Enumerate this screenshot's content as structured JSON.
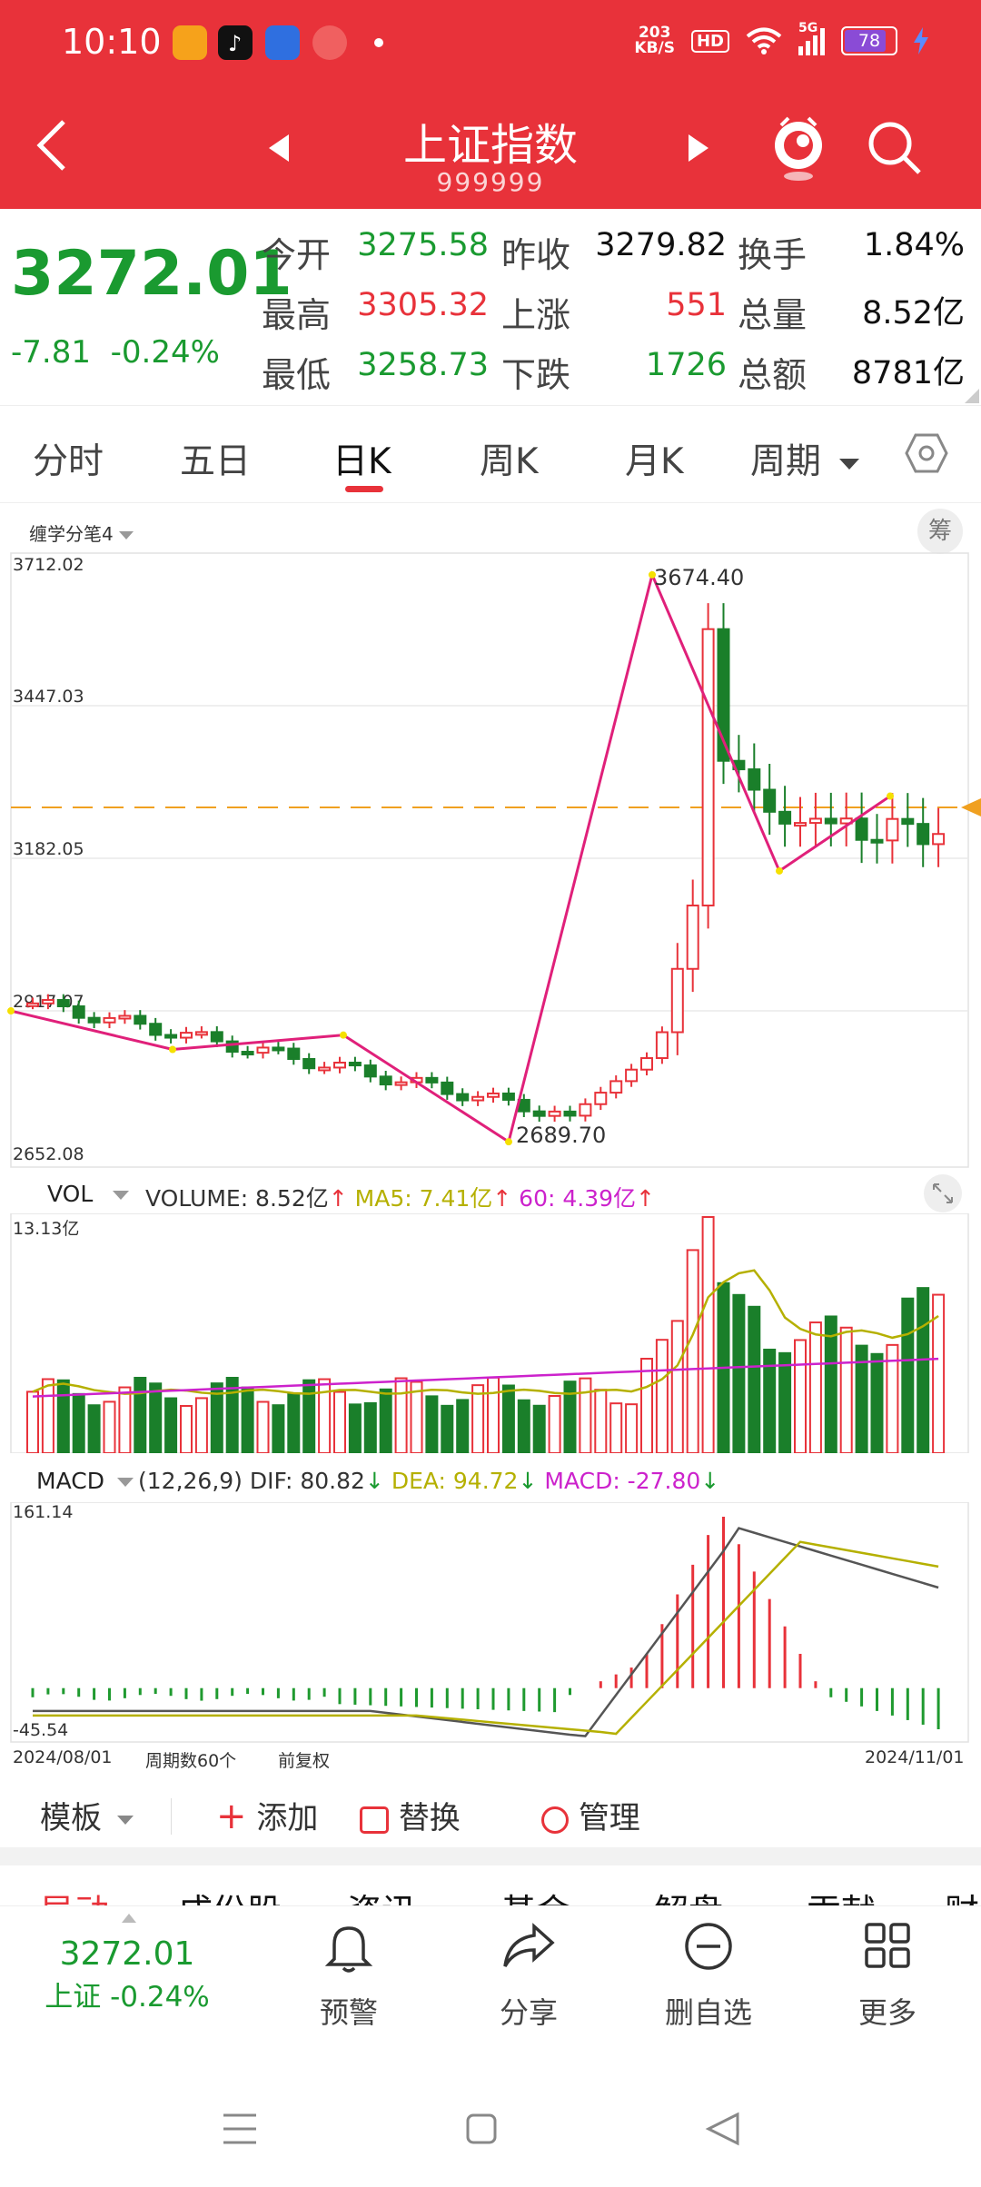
{
  "status_bar": {
    "time": "10:10",
    "net_speed_value": "203",
    "net_speed_unit": "KB/S",
    "hd_label": "HD",
    "signal_label": "5G",
    "battery": "78",
    "icons": [
      "app-icon-1",
      "tiktok-icon",
      "baidu-icon",
      "app-icon-4",
      "dot-icon",
      "wifi-icon",
      "signal-icon",
      "charging-icon"
    ]
  },
  "header": {
    "title": "上证指数",
    "code": "999999",
    "icons": [
      "back-icon",
      "prev-icon",
      "next-icon",
      "mascot-icon",
      "search-icon"
    ]
  },
  "quote": {
    "price": "3272.01",
    "change": "-7.81",
    "change_pct": "-0.24%",
    "rows": [
      [
        {
          "label": "今开",
          "value": "3275.58",
          "color": "green"
        },
        {
          "label": "昨收",
          "value": "3279.82",
          "color": "black"
        },
        {
          "label": "换手",
          "value": "1.84%",
          "color": "black"
        }
      ],
      [
        {
          "label": "最高",
          "value": "3305.32",
          "color": "red"
        },
        {
          "label": "上涨",
          "value": "551",
          "color": "red"
        },
        {
          "label": "总量",
          "value": "8.52亿",
          "color": "black"
        }
      ],
      [
        {
          "label": "最低",
          "value": "3258.73",
          "color": "green"
        },
        {
          "label": "下跌",
          "value": "1726",
          "color": "green"
        },
        {
          "label": "总额",
          "value": "8781亿",
          "color": "black"
        }
      ]
    ]
  },
  "tabs": [
    "分时",
    "五日",
    "日K",
    "周K",
    "月K",
    "周期"
  ],
  "active_tab": "日K",
  "kline": {
    "indicator_label": "缠学分笔4",
    "chip_label": "筹",
    "y_ticks": [
      "3712.02",
      "3447.03",
      "3182.05",
      "2917.07",
      "2652.08"
    ],
    "high_marker": "3674.40",
    "low_marker": "2689.70"
  },
  "volume": {
    "label": "VOL",
    "volume_text": "VOLUME: 8.52亿",
    "ma5_text": "MA5: 7.41亿",
    "ma60_text": "60: 4.39亿",
    "max_label": "13.13亿"
  },
  "macd": {
    "label": "MACD",
    "params": "(12,26,9)",
    "dif_text": "DIF: 80.82",
    "dea_text": "DEA: 94.72",
    "macd_text": "MACD: -27.80",
    "max_label": "161.14",
    "min_label": "-45.54"
  },
  "footer_axis": {
    "start_date": "2024/08/01",
    "period_count": "周期数60个",
    "adjust": "前复权",
    "end_date": "2024/11/01"
  },
  "toolbar": {
    "template": "模板",
    "add": "添加",
    "replace": "替换",
    "manage": "管理"
  },
  "subtabs": [
    "异动",
    "成份股",
    "资讯",
    "基金",
    "解盘",
    "贡献",
    "财"
  ],
  "bottom_bar": {
    "price": "3272.01",
    "price_label": "上证 -0.24%",
    "alert": "预警",
    "share": "分享",
    "remove": "删自选",
    "more": "更多"
  },
  "colors": {
    "header_red": "#e8323a",
    "up_red": "#e8323a",
    "down_green": "#1a7f2a",
    "stroke_pink": "#e0207a",
    "ma_yellow": "#b5b000",
    "ma_magenta": "#cc22cc",
    "dash_orange": "#f0a020"
  }
}
